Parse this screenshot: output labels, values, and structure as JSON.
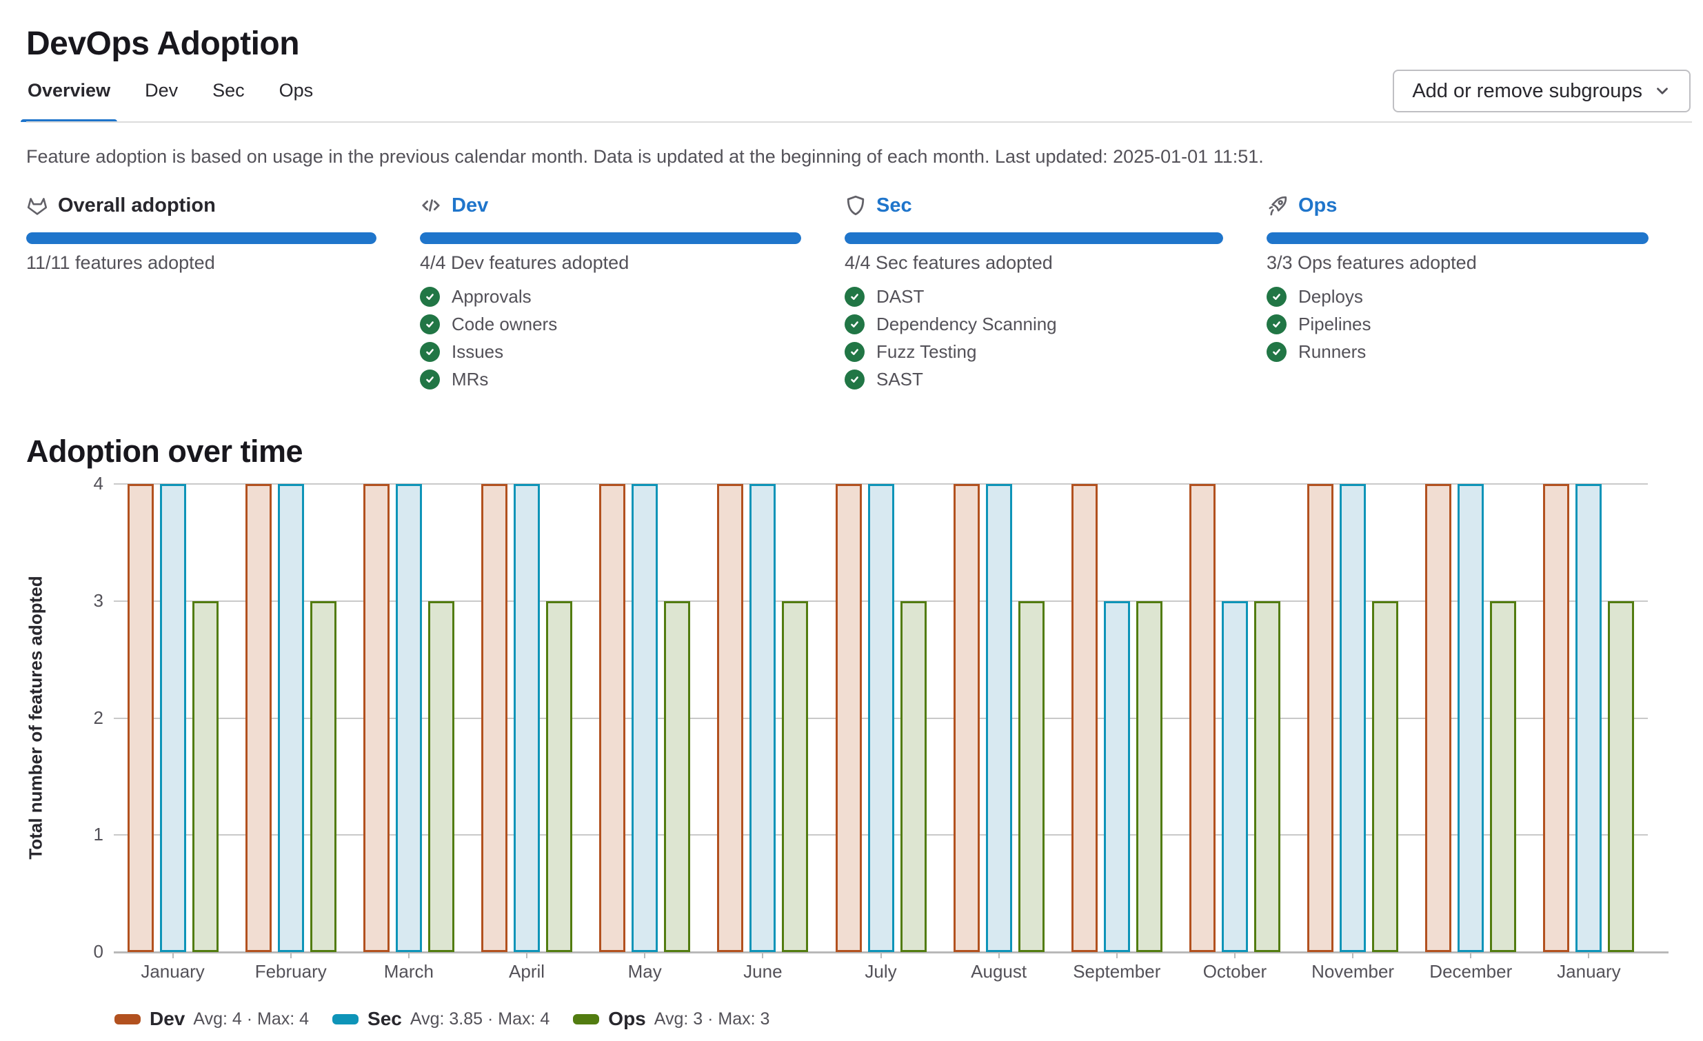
{
  "page": {
    "title": "DevOps Adoption"
  },
  "tabs": [
    {
      "label": "Overview",
      "active": true
    },
    {
      "label": "Dev",
      "active": false
    },
    {
      "label": "Sec",
      "active": false
    },
    {
      "label": "Ops",
      "active": false
    }
  ],
  "toolbar": {
    "subgroups_button": "Add or remove subgroups"
  },
  "description": "Feature adoption is based on usage in the previous calendar month. Data is updated at the beginning of each month. Last updated: 2025-01-01 11:51.",
  "summary": {
    "columns": [
      {
        "key": "overall",
        "icon": "tanuki-icon",
        "title": "Overall adoption",
        "is_link": false,
        "progress_percent": 100,
        "adopted_label": "11/11 features adopted",
        "features": []
      },
      {
        "key": "dev",
        "icon": "code-icon",
        "title": "Dev",
        "is_link": true,
        "progress_percent": 100,
        "adopted_label": "4/4 Dev features adopted",
        "features": [
          "Approvals",
          "Code owners",
          "Issues",
          "MRs"
        ]
      },
      {
        "key": "sec",
        "icon": "shield-icon",
        "title": "Sec",
        "is_link": true,
        "progress_percent": 100,
        "adopted_label": "4/4 Sec features adopted",
        "features": [
          "DAST",
          "Dependency Scanning",
          "Fuzz Testing",
          "SAST"
        ]
      },
      {
        "key": "ops",
        "icon": "rocket-icon",
        "title": "Ops",
        "is_link": true,
        "progress_percent": 100,
        "adopted_label": "3/3 Ops features adopted",
        "features": [
          "Deploys",
          "Pipelines",
          "Runners"
        ]
      }
    ]
  },
  "chart_section": {
    "title": "Adoption over time"
  },
  "chart_data": {
    "type": "bar",
    "title": "Adoption over time",
    "categories": [
      "January",
      "February",
      "March",
      "April",
      "May",
      "June",
      "July",
      "August",
      "September",
      "October",
      "November",
      "December",
      "January"
    ],
    "series": [
      {
        "name": "Dev",
        "values": [
          4,
          4,
          4,
          4,
          4,
          4,
          4,
          4,
          4,
          4,
          4,
          4,
          4
        ],
        "stroke": "#b2511f",
        "fill": "#f1ddd2",
        "legend_stats": "Avg: 4 · Max: 4"
      },
      {
        "name": "Sec",
        "values": [
          4,
          4,
          4,
          4,
          4,
          4,
          4,
          4,
          3,
          3,
          4,
          4,
          4
        ],
        "stroke": "#0e94b8",
        "fill": "#d8e9f1",
        "legend_stats": "Avg: 3.85 · Max: 4"
      },
      {
        "name": "Ops",
        "values": [
          3,
          3,
          3,
          3,
          3,
          3,
          3,
          3,
          3,
          3,
          3,
          3,
          3
        ],
        "stroke": "#527c10",
        "fill": "#dde5d1",
        "legend_stats": "Avg: 3 · Max: 3"
      }
    ],
    "xlabel": "",
    "ylabel": "Total number of features adopted",
    "ylim": [
      0,
      4
    ],
    "yticks": [
      0,
      1,
      2,
      3,
      4
    ],
    "grid": true,
    "legend_position": "bottom-left"
  },
  "colors": {
    "accent_blue": "#1f75cb",
    "check_green": "#217645",
    "icon_gray": "#626168",
    "text_dark": "#28272d",
    "text_gray": "#535158",
    "gridline": "#c9c9c9",
    "axis_line": "#b9b9b9"
  }
}
